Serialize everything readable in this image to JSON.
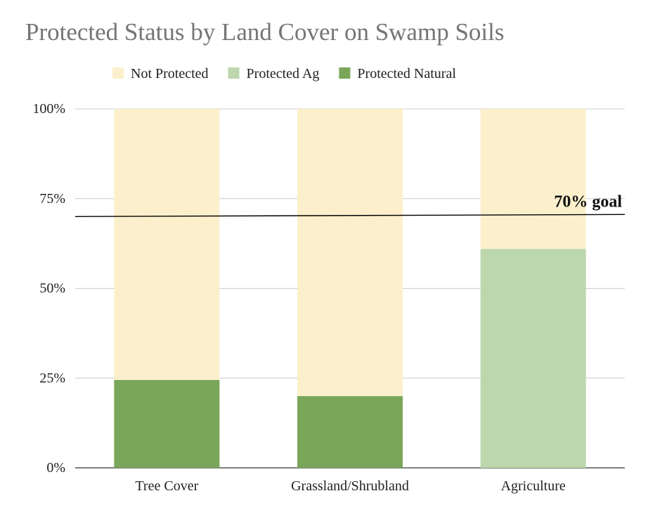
{
  "chart_data": {
    "type": "bar",
    "stacked": true,
    "title": "Protected Status by Land Cover on Swamp Soils",
    "categories": [
      "Tree Cover",
      "Grassland/Shrubland",
      "Agriculture"
    ],
    "series": [
      {
        "name": "Protected Natural",
        "color": "#7aa65a",
        "values": [
          24.5,
          20,
          0
        ]
      },
      {
        "name": "Protected Ag",
        "color": "#bcd7ad",
        "values": [
          0,
          0,
          61
        ]
      },
      {
        "name": "Not Protected",
        "color": "#fcf0cc",
        "values": [
          75.5,
          80,
          39
        ]
      }
    ],
    "legend_order": [
      "Not Protected",
      "Protected Ag",
      "Protected Natural"
    ],
    "legend_placement": "top",
    "y_ticks": [
      "0%",
      "25%",
      "50%",
      "75%",
      "100%"
    ],
    "ylim": [
      0,
      100
    ],
    "grid": true,
    "reference_line": {
      "value": 70,
      "label": "70% goal",
      "color": "#000000"
    }
  }
}
